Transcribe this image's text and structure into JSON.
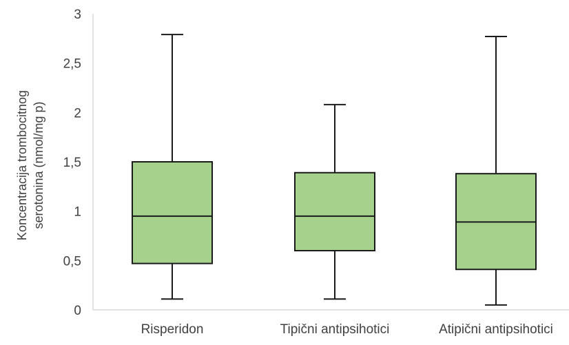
{
  "chart_data": {
    "type": "boxplot",
    "title": "",
    "xlabel": "",
    "ylabel_lines": [
      "Koncentracija trombocitnog",
      "serotonina (nmol/mg p)"
    ],
    "ylim": [
      0,
      3
    ],
    "y_ticks": [
      "0",
      "0,5",
      "1",
      "1,5",
      "2",
      "2,5",
      "3"
    ],
    "y_tick_values": [
      0,
      0.5,
      1,
      1.5,
      2,
      2.5,
      3
    ],
    "grid": false,
    "legend": "none",
    "categories": [
      "Risperidon",
      "Tipični antipsihotici",
      "Atipični antipsihotici"
    ],
    "boxes": [
      {
        "category": "Risperidon",
        "min": 0.11,
        "q1": 0.47,
        "median": 0.95,
        "q3": 1.5,
        "max": 2.79
      },
      {
        "category": "Tipični antipsihotici",
        "min": 0.11,
        "q1": 0.6,
        "median": 0.95,
        "q3": 1.39,
        "max": 2.08
      },
      {
        "category": "Atipični antipsihotici",
        "min": 0.05,
        "q1": 0.41,
        "median": 0.89,
        "q3": 1.38,
        "max": 2.77
      }
    ],
    "colors": {
      "box_fill": "#a5d18c",
      "box_stroke": "#1a1a1a",
      "axis_line": "#d9d9d9",
      "text": "#404040"
    }
  }
}
